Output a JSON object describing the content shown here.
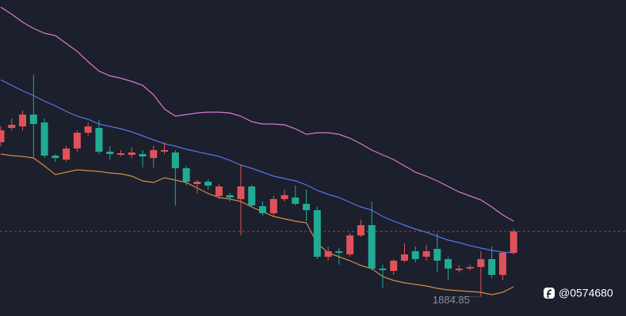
{
  "chart_data": {
    "type": "candlestick",
    "ylim": [
      1880,
      1960
    ],
    "up_color": "#e0525b",
    "down_color": "#22ab94",
    "open": [
      1924.0,
      1927.6,
      1928.0,
      1931.0,
      1929.0,
      1920.6,
      1919.6,
      1922.4,
      1926.4,
      1927.6,
      1921.6,
      1920.8,
      1920.8,
      1921.0,
      1920.0,
      1921.6,
      1921.4,
      1917.4,
      1913.4,
      1914.0,
      1910.4,
      1910.6,
      1909.6,
      1912.8,
      1907.8,
      1906.0,
      1909.6,
      1910.0,
      1908.4,
      1906.8,
      1895.0,
      1896.4,
      1895.6,
      1900.4,
      1903.0,
      1892.0,
      1891.4,
      1894.0,
      1896.4,
      1895.0,
      1897.0,
      1894.4,
      1891.6,
      1892.0,
      1892.4,
      1894.4,
      1890.4,
      1896.0
    ],
    "high": [
      1928.0,
      1930.0,
      1932.0,
      1941.0,
      1930.0,
      1921.0,
      1923.0,
      1927.0,
      1929.0,
      1929.6,
      1923.0,
      1922.0,
      1922.8,
      1922.0,
      1923.0,
      1924.0,
      1922.0,
      1918.0,
      1914.4,
      1914.6,
      1913.4,
      1911.2,
      1918.4,
      1913.2,
      1909.0,
      1910.4,
      1912.0,
      1913.0,
      1912.0,
      1907.6,
      1897.6,
      1897.2,
      1901.0,
      1904.4,
      1909.0,
      1893.0,
      1894.4,
      1898.4,
      1897.6,
      1898.0,
      1901.0,
      1895.0,
      1892.8,
      1893.0,
      1896.4,
      1897.6,
      1896.4,
      1902.0
    ],
    "low": [
      1923.0,
      1927.0,
      1927.0,
      1920.0,
      1920.0,
      1919.0,
      1919.0,
      1921.6,
      1925.6,
      1921.0,
      1919.6,
      1920.4,
      1920.0,
      1917.6,
      1917.6,
      1921.0,
      1908.0,
      1913.0,
      1911.0,
      1912.0,
      1909.6,
      1909.0,
      1900.4,
      1907.6,
      1905.4,
      1905.4,
      1909.0,
      1908.0,
      1904.0,
      1894.4,
      1894.0,
      1893.0,
      1895.0,
      1900.0,
      1891.6,
      1887.0,
      1890.4,
      1893.6,
      1893.6,
      1894.0,
      1891.0,
      1889.0,
      1891.0,
      1891.6,
      1884.85,
      1889.6,
      1889.0,
      1895.6
    ],
    "close": [
      1927.0,
      1928.4,
      1931.0,
      1928.6,
      1920.6,
      1920.0,
      1922.4,
      1926.4,
      1928.0,
      1921.6,
      1921.0,
      1921.2,
      1921.4,
      1920.4,
      1922.0,
      1922.0,
      1917.4,
      1914.0,
      1914.0,
      1913.0,
      1912.8,
      1910.0,
      1912.8,
      1908.0,
      1906.0,
      1909.6,
      1910.6,
      1908.4,
      1906.8,
      1895.0,
      1896.4,
      1896.0,
      1900.4,
      1903.0,
      1892.0,
      1891.6,
      1894.0,
      1895.6,
      1894.4,
      1896.4,
      1894.0,
      1892.0,
      1892.0,
      1892.4,
      1894.4,
      1890.4,
      1896.0,
      1901.4
    ],
    "lines": [
      {
        "color": "#d97ad0",
        "values": [
          1958.2,
          1956.4,
          1954.4,
          1952.8,
          1951.6,
          1951.0,
          1949.0,
          1947.0,
          1944.4,
          1942.0,
          1940.8,
          1940.2,
          1939.4,
          1938.4,
          1936.0,
          1932.4,
          1930.6,
          1931.0,
          1931.4,
          1931.6,
          1931.6,
          1931.4,
          1930.6,
          1929.2,
          1928.6,
          1928.6,
          1928.4,
          1927.4,
          1926.0,
          1926.4,
          1926.4,
          1926.0,
          1925.0,
          1923.6,
          1922.0,
          1920.8,
          1919.6,
          1918.0,
          1916.4,
          1915.4,
          1914.2,
          1912.8,
          1911.4,
          1910.4,
          1909.4,
          1907.6,
          1905.6,
          1904.0
        ]
      },
      {
        "color": "#5b72e8",
        "values": [
          1939.8,
          1938.4,
          1937.0,
          1935.8,
          1934.4,
          1933.2,
          1931.8,
          1930.6,
          1929.8,
          1928.6,
          1928.0,
          1927.4,
          1926.6,
          1925.6,
          1924.6,
          1923.6,
          1923.0,
          1922.2,
          1921.6,
          1921.0,
          1920.4,
          1919.4,
          1918.2,
          1917.4,
          1916.4,
          1915.4,
          1914.8,
          1914.2,
          1913.2,
          1911.8,
          1910.8,
          1910.0,
          1908.8,
          1907.6,
          1906.8,
          1905.2,
          1904.0,
          1903.0,
          1902.0,
          1901.2,
          1900.2,
          1899.2,
          1898.6,
          1897.8,
          1897.2,
          1896.6,
          1896.2,
          1896.0
        ]
      },
      {
        "color": "#d98a45",
        "values": [
          1921.0,
          1920.6,
          1920.4,
          1920.0,
          1918.0,
          1915.8,
          1916.4,
          1917.0,
          1916.8,
          1916.6,
          1916.2,
          1916.0,
          1915.4,
          1914.2,
          1913.8,
          1915.0,
          1914.4,
          1913.8,
          1912.4,
          1911.0,
          1910.0,
          1909.6,
          1909.0,
          1907.6,
          1906.4,
          1905.2,
          1904.6,
          1904.0,
          1903.6,
          1898.4,
          1896.0,
          1895.0,
          1894.0,
          1892.8,
          1892.0,
          1890.0,
          1889.0,
          1888.4,
          1888.0,
          1887.6,
          1887.0,
          1886.6,
          1886.4,
          1886.2,
          1886.0,
          1885.4,
          1886.0,
          1887.4
        ]
      }
    ],
    "watermark": "@0574680"
  }
}
